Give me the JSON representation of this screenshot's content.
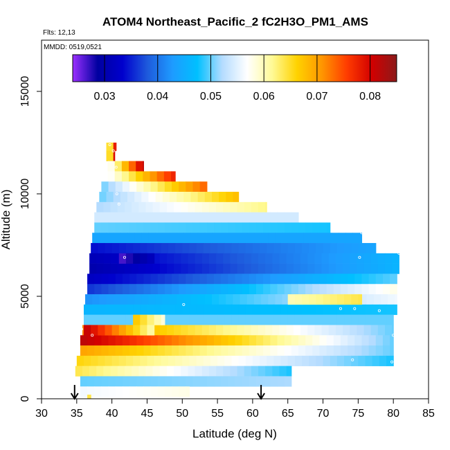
{
  "chart_data": {
    "type": "heatmap",
    "title": "ATOM4 Northeast_Pacific_2 fC2H3O_PM1_AMS",
    "flights_label": "Flts: 12,13",
    "dates_label": "MMDD: 0519,0521",
    "xlabel": "Latitude (deg N)",
    "ylabel": "Altitude (m)",
    "xlim": [
      30,
      85
    ],
    "ylim": [
      0,
      17500
    ],
    "x_ticks": [
      "30",
      "35",
      "40",
      "45",
      "50",
      "55",
      "60",
      "65",
      "70",
      "75",
      "80",
      "85"
    ],
    "y_ticks": [
      "0",
      "5000",
      "10000",
      "15000"
    ],
    "colorbar": {
      "vmin": 0.024,
      "vmax": 0.085,
      "tick_values": [
        0.03,
        0.04,
        0.05,
        0.06,
        0.07,
        0.08
      ],
      "tick_labels": [
        "0.03",
        "0.04",
        "0.05",
        "0.06",
        "0.07",
        "0.08"
      ],
      "palette": [
        "#9b30ff",
        "#0000a0",
        "#0000cd",
        "#1e5adc",
        "#1e9bff",
        "#00c0ff",
        "#b4dcff",
        "#ffffff",
        "#fffa96",
        "#ffd200",
        "#ff9600",
        "#ff3c00",
        "#d20000",
        "#8b1a1a"
      ]
    },
    "arrows_latitude": [
      34.7,
      61.2
    ],
    "rows": [
      {
        "alt_bottom": 12100,
        "alt_top": 12500,
        "lat_start": 39.2,
        "lat_end": 40.6,
        "v_start": 0.055,
        "v_end": 0.082
      },
      {
        "alt_bottom": 11600,
        "alt_top": 12100,
        "lat_start": 39.2,
        "lat_end": 40.4,
        "v_start": 0.053,
        "v_end": 0.082
      },
      {
        "alt_bottom": 11100,
        "alt_top": 11600,
        "lat_start": 39.4,
        "lat_end": 44.5,
        "v_start": 0.055,
        "v_end": 0.082
      },
      {
        "alt_bottom": 10600,
        "alt_top": 11100,
        "lat_start": 39.4,
        "lat_end": 49.0,
        "v_start": 0.056,
        "v_end": 0.078
      },
      {
        "alt_bottom": 10100,
        "alt_top": 10600,
        "lat_start": 38.5,
        "lat_end": 53.5,
        "v_start": 0.05,
        "v_end": 0.074
      },
      {
        "alt_bottom": 9600,
        "alt_top": 10100,
        "lat_start": 38.2,
        "lat_end": 58.0,
        "v_start": 0.05,
        "v_end": 0.068
      },
      {
        "alt_bottom": 9100,
        "alt_top": 9600,
        "lat_start": 37.8,
        "lat_end": 62.0,
        "v_start": 0.052,
        "v_end": 0.062
      },
      {
        "alt_bottom": 8600,
        "alt_top": 9100,
        "lat_start": 37.5,
        "lat_end": 66.5,
        "v_start": 0.054,
        "v_end": 0.054
      },
      {
        "alt_bottom": 8100,
        "alt_top": 8600,
        "lat_start": 37.5,
        "lat_end": 71.0,
        "v_start": 0.05,
        "v_end": 0.048
      },
      {
        "alt_bottom": 7600,
        "alt_top": 8100,
        "lat_start": 37.2,
        "lat_end": 75.5,
        "v_start": 0.044,
        "v_end": 0.044
      },
      {
        "alt_bottom": 7100,
        "alt_top": 7600,
        "lat_start": 37.0,
        "lat_end": 77.5,
        "v_start": 0.034,
        "v_end": 0.044
      },
      {
        "alt_bottom": 6600,
        "alt_top": 7100,
        "lat_start": 36.8,
        "lat_end": 80.8,
        "v_start": 0.031,
        "v_end": 0.046
      },
      {
        "alt_bottom": 6100,
        "alt_top": 6600,
        "lat_start": 36.8,
        "lat_end": 80.8,
        "v_start": 0.03,
        "v_end": 0.046
      },
      {
        "alt_bottom": 5600,
        "alt_top": 6100,
        "lat_start": 36.5,
        "lat_end": 80.5,
        "v_start": 0.032,
        "v_end": 0.05
      },
      {
        "alt_bottom": 5100,
        "alt_top": 5600,
        "lat_start": 36.5,
        "lat_end": 80.5,
        "v_start": 0.036,
        "v_end": 0.058
      },
      {
        "alt_bottom": 4600,
        "alt_top": 5100,
        "lat_start": 36.2,
        "lat_end": 80.5,
        "v_start": 0.042,
        "v_end": 0.056
      },
      {
        "alt_bottom": 4100,
        "alt_top": 4600,
        "lat_start": 36.0,
        "lat_end": 80.5,
        "v_start": 0.046,
        "v_end": 0.048
      },
      {
        "alt_bottom": 3600,
        "alt_top": 4100,
        "lat_start": 36.0,
        "lat_end": 80.0,
        "v_start": 0.05,
        "v_end": 0.05
      },
      {
        "alt_bottom": 3100,
        "alt_top": 3600,
        "lat_start": 35.8,
        "lat_end": 80.0,
        "v_start": 0.072,
        "v_end": 0.05
      },
      {
        "alt_bottom": 2600,
        "alt_top": 3100,
        "lat_start": 35.5,
        "lat_end": 80.0,
        "v_start": 0.082,
        "v_end": 0.05
      },
      {
        "alt_bottom": 2100,
        "alt_top": 2600,
        "lat_start": 35.5,
        "lat_end": 80.0,
        "v_start": 0.07,
        "v_end": 0.05
      },
      {
        "alt_bottom": 1600,
        "alt_top": 2100,
        "lat_start": 35.0,
        "lat_end": 80.0,
        "v_start": 0.066,
        "v_end": 0.048
      },
      {
        "alt_bottom": 1100,
        "alt_top": 1600,
        "lat_start": 34.8,
        "lat_end": 65.5,
        "v_start": 0.064,
        "v_end": 0.048
      },
      {
        "alt_bottom": 600,
        "alt_top": 1100,
        "lat_start": 35.5,
        "lat_end": 65.5,
        "v_start": 0.05,
        "v_end": 0.052
      },
      {
        "alt_bottom": 100,
        "alt_top": 600,
        "lat_start": 35.5,
        "lat_end": 51.0,
        "v_start": 0.056,
        "v_end": 0.058
      },
      {
        "alt_bottom": 0,
        "alt_top": 200,
        "lat_start": 36.5,
        "lat_end": 37.0,
        "v_start": 0.064,
        "v_end": 0.064
      }
    ],
    "blocks": [
      {
        "alt_bottom": 3600,
        "alt_top": 4100,
        "lat_start": 43.0,
        "lat_end": 47.5,
        "v_start": 0.068,
        "v_end": 0.058
      },
      {
        "alt_bottom": 3100,
        "alt_top": 3600,
        "lat_start": 36.0,
        "lat_end": 46.0,
        "v_start": 0.082,
        "v_end": 0.06
      },
      {
        "alt_bottom": 6600,
        "alt_top": 7100,
        "lat_start": 41.0,
        "lat_end": 46.0,
        "v_start": 0.026,
        "v_end": 0.032
      },
      {
        "alt_bottom": 4600,
        "alt_top": 5100,
        "lat_start": 65.0,
        "lat_end": 75.5,
        "v_start": 0.06,
        "v_end": 0.064
      }
    ],
    "markers": [
      {
        "lat": 39.7,
        "alt": 12400
      },
      {
        "lat": 40.2,
        "alt": 12100
      },
      {
        "lat": 40.6,
        "alt": 11300
      },
      {
        "lat": 40.7,
        "alt": 10000
      },
      {
        "lat": 41.0,
        "alt": 9500
      },
      {
        "lat": 41.8,
        "alt": 6900
      },
      {
        "lat": 50.2,
        "alt": 4600
      },
      {
        "lat": 72.5,
        "alt": 4400
      },
      {
        "lat": 74.5,
        "alt": 4400
      },
      {
        "lat": 78.0,
        "alt": 4300
      },
      {
        "lat": 75.5,
        "alt": 8100
      },
      {
        "lat": 75.2,
        "alt": 6900
      },
      {
        "lat": 80.8,
        "alt": 7100
      },
      {
        "lat": 80.0,
        "alt": 3100
      },
      {
        "lat": 79.8,
        "alt": 1800
      },
      {
        "lat": 74.2,
        "alt": 1900
      },
      {
        "lat": 37.2,
        "alt": 3100
      },
      {
        "lat": 35.7,
        "alt": 3400
      }
    ]
  }
}
